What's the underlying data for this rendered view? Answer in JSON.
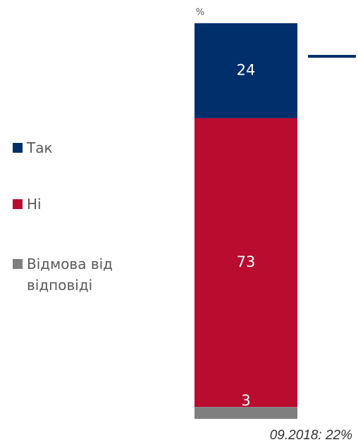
{
  "chart_data": {
    "type": "bar",
    "stacked": true,
    "unit_label": "%",
    "series": [
      {
        "name": "Так",
        "color": "#002f6c",
        "values": [
          24
        ]
      },
      {
        "name": "Ні",
        "color": "#ba0c2f",
        "values": [
          73
        ]
      },
      {
        "name": "Відмова від відповіді",
        "color": "#7f7f7f",
        "values": [
          3
        ]
      }
    ],
    "annotation": "09.2018: 22%",
    "annotation_color": "#002f6c"
  }
}
